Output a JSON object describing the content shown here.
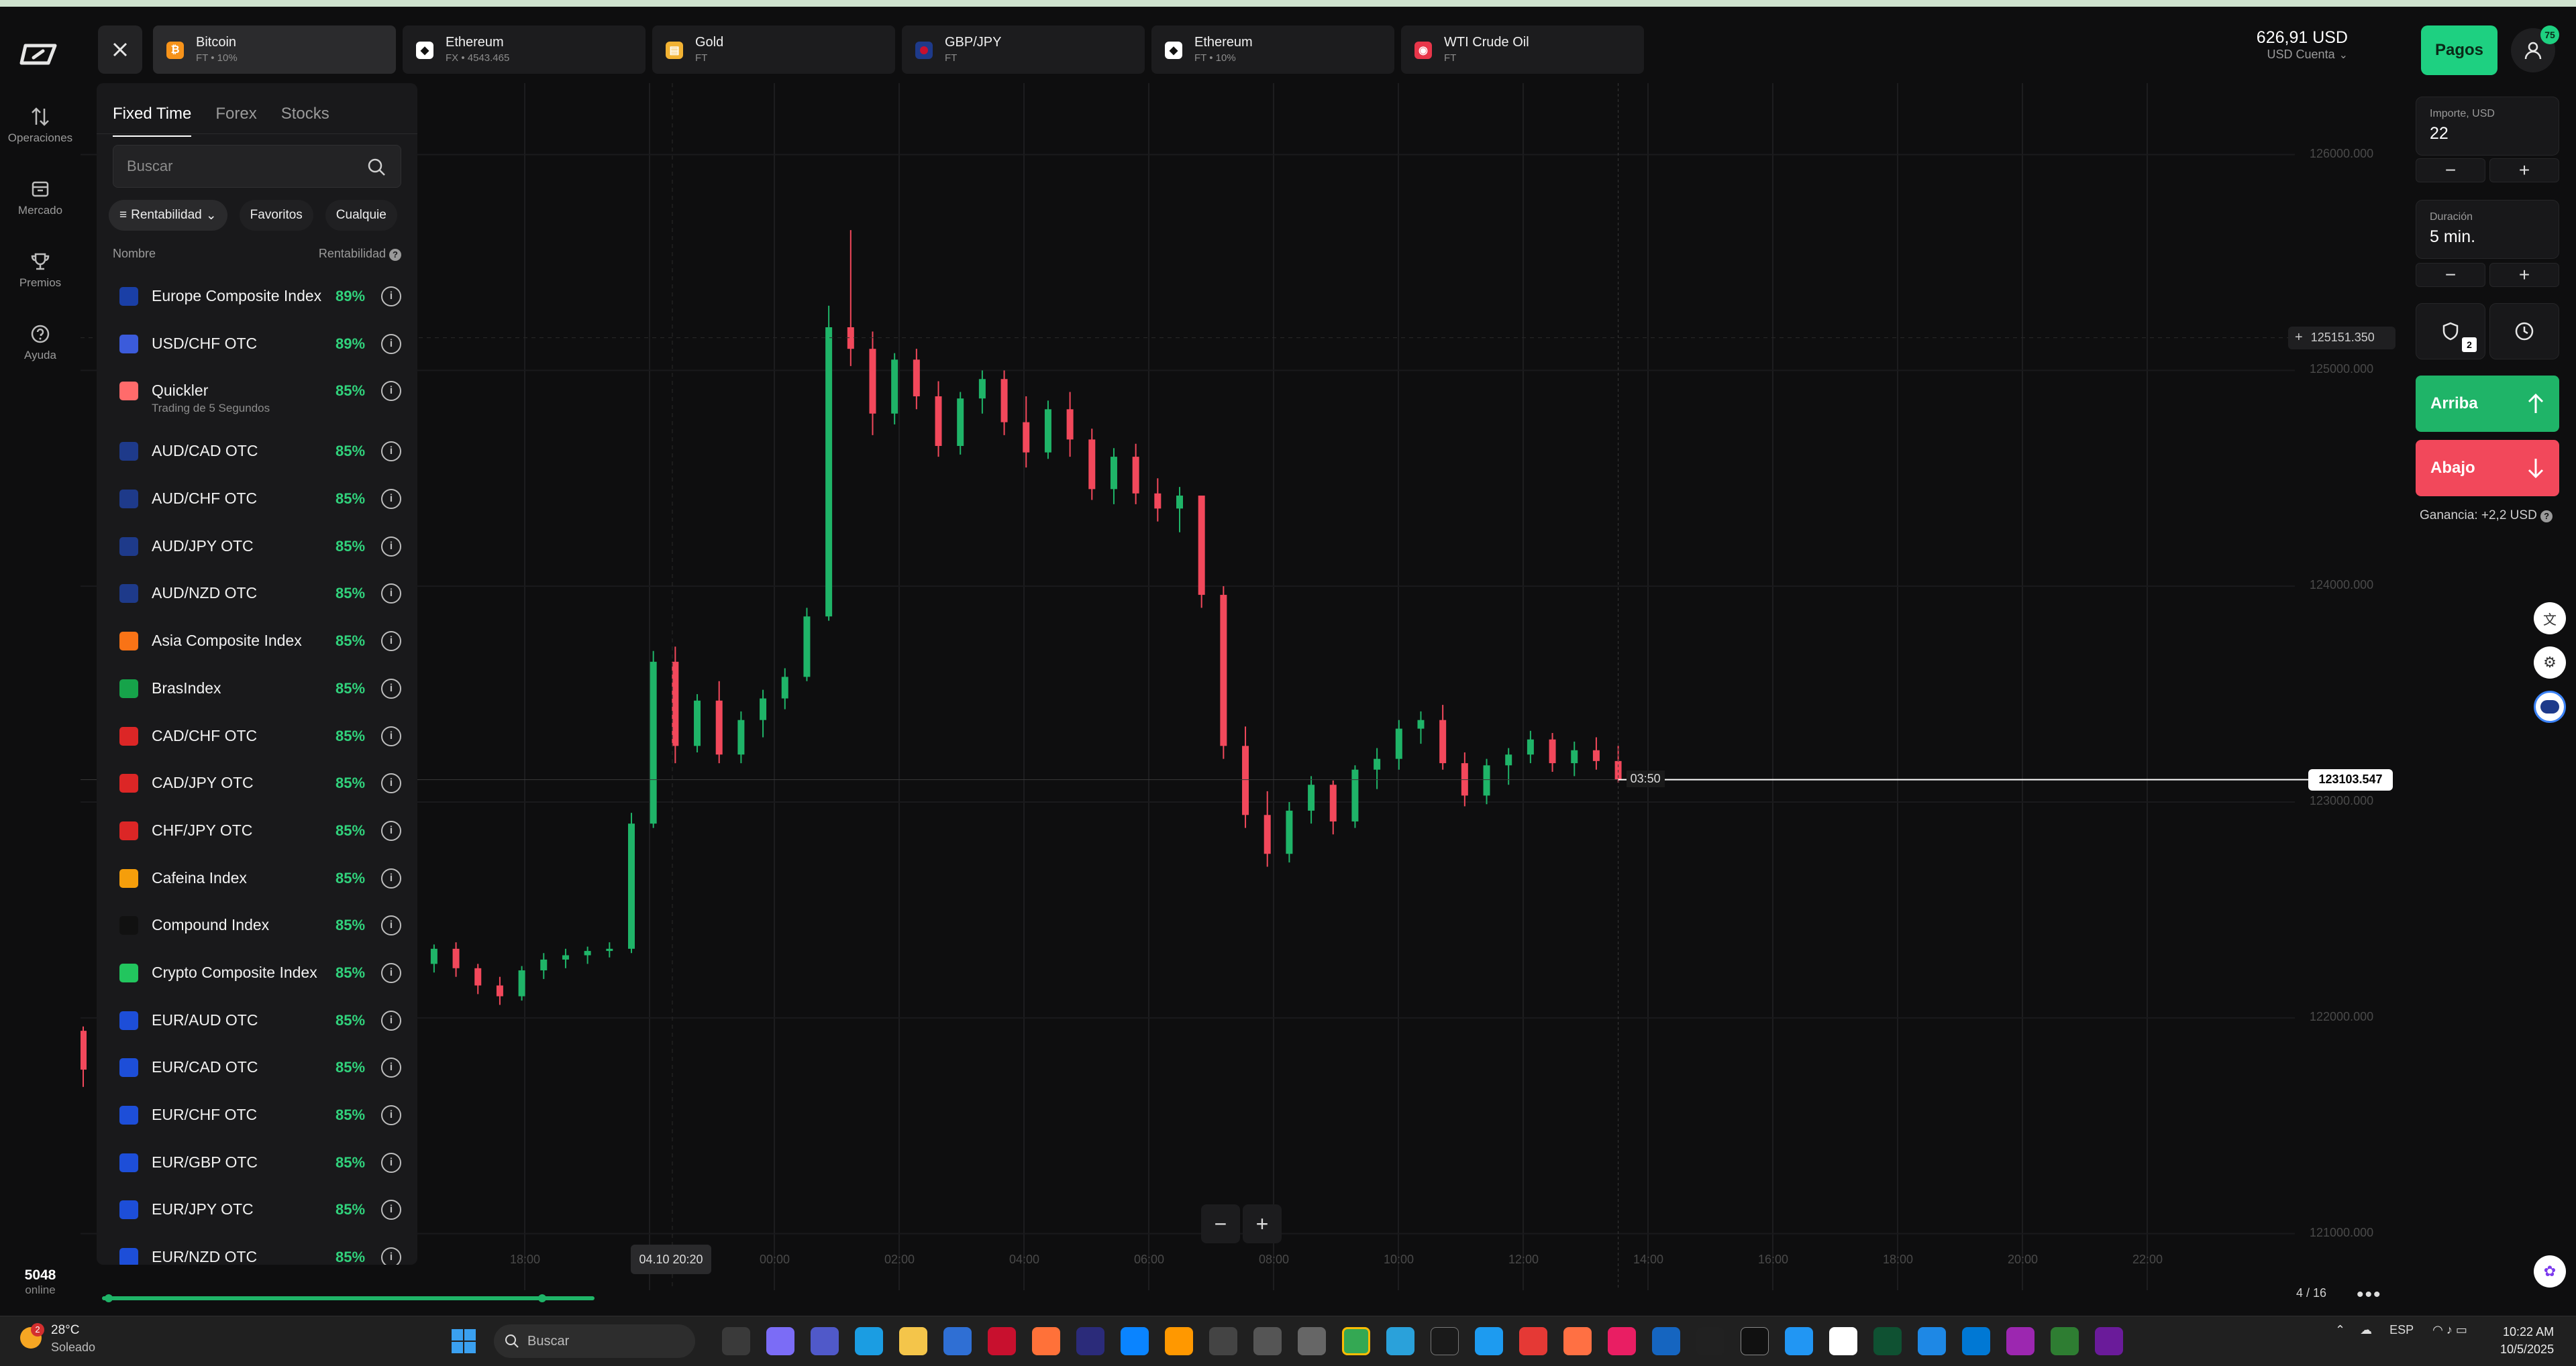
{
  "nav": {
    "items": [
      {
        "label": "Operaciones",
        "icon": "arrows-updown-icon"
      },
      {
        "label": "Mercado",
        "icon": "shop-icon"
      },
      {
        "label": "Premios",
        "icon": "trophy-icon"
      },
      {
        "label": "Ayuda",
        "icon": "help-icon"
      }
    ],
    "online_count": "5048",
    "online_label": "online"
  },
  "tabs": [
    {
      "name": "Bitcoin",
      "sub": "FT • 10%",
      "color": "#f7931a",
      "glyph": "₿"
    },
    {
      "name": "Ethereum",
      "sub": "FX • 4543.465",
      "color": "#ffffff",
      "glyph": "◆"
    },
    {
      "name": "Gold",
      "sub": "FT",
      "color": "#f2b233",
      "glyph": "▤"
    },
    {
      "name": "GBP/JPY",
      "sub": "FT",
      "color": "#c8102e",
      "glyph": "●"
    },
    {
      "name": "Ethereum",
      "sub": "FT • 10%",
      "color": "#ffffff",
      "glyph": "◆"
    },
    {
      "name": "WTI Crude Oil",
      "sub": "FT",
      "color": "#e8364a",
      "glyph": "◉"
    }
  ],
  "account": {
    "balance": "626,91 USD",
    "account_label": "USD Cuenta",
    "pay_button": "Pagos",
    "notifications": "75"
  },
  "panel": {
    "tabs": [
      "Fixed Time",
      "Forex",
      "Stocks"
    ],
    "search_placeholder": "Buscar",
    "chips": [
      "Rentabilidad",
      "Favoritos",
      "Cualquie"
    ],
    "col_name": "Nombre",
    "col_profit": "Rentabilidad",
    "assets": [
      {
        "name": "Europe Composite Index",
        "pct": "89%",
        "color": "#1a3fa6"
      },
      {
        "name": "USD/CHF OTC",
        "pct": "89%",
        "color": "#3b5bdb"
      },
      {
        "name": "Quickler",
        "sub": "Trading de 5 Segundos",
        "pct": "85%",
        "color": "#ff6b6b"
      },
      {
        "name": "AUD/CAD OTC",
        "pct": "85%",
        "color": "#1e3a8a"
      },
      {
        "name": "AUD/CHF OTC",
        "pct": "85%",
        "color": "#1e3a8a"
      },
      {
        "name": "AUD/JPY OTC",
        "pct": "85%",
        "color": "#1e3a8a"
      },
      {
        "name": "AUD/NZD OTC",
        "pct": "85%",
        "color": "#1e3a8a"
      },
      {
        "name": "Asia Composite Index",
        "pct": "85%",
        "color": "#f97316"
      },
      {
        "name": "BrasIndex",
        "pct": "85%",
        "color": "#16a34a"
      },
      {
        "name": "CAD/CHF OTC",
        "pct": "85%",
        "color": "#dc2626"
      },
      {
        "name": "CAD/JPY OTC",
        "pct": "85%",
        "color": "#dc2626"
      },
      {
        "name": "CHF/JPY OTC",
        "pct": "85%",
        "color": "#dc2626"
      },
      {
        "name": "Cafeina Index",
        "pct": "85%",
        "color": "#f59e0b"
      },
      {
        "name": "Compound Index",
        "pct": "85%",
        "color": "#111111"
      },
      {
        "name": "Crypto Composite Index",
        "pct": "85%",
        "color": "#22c55e"
      },
      {
        "name": "EUR/AUD OTC",
        "pct": "85%",
        "color": "#1d4ed8"
      },
      {
        "name": "EUR/CAD OTC",
        "pct": "85%",
        "color": "#1d4ed8"
      },
      {
        "name": "EUR/CHF OTC",
        "pct": "85%",
        "color": "#1d4ed8"
      },
      {
        "name": "EUR/GBP OTC",
        "pct": "85%",
        "color": "#1d4ed8"
      },
      {
        "name": "EUR/JPY OTC",
        "pct": "85%",
        "color": "#1d4ed8"
      },
      {
        "name": "EUR/NZD OTC",
        "pct": "85%",
        "color": "#1d4ed8"
      }
    ]
  },
  "chart": {
    "price_labels": [
      "126000.000",
      "125000.000",
      "124000.000",
      "123000.000",
      "122000.000",
      "121000.000"
    ],
    "time_labels": [
      "18:00",
      "22:00",
      "00:00",
      "02:00",
      "04:00",
      "06:00",
      "08:00",
      "10:00",
      "12:00",
      "14:00",
      "16:00",
      "18:00",
      "20:00",
      "22:00"
    ],
    "current_price": "123103.547",
    "crosshair_price": "125151.350",
    "countdown": "03:50",
    "crosshair_date": "04.10 20:20",
    "page_info": "4 / 16",
    "up_color": "#1fb468",
    "down_color": "#f2485b"
  },
  "chart_data": {
    "type": "candlestick",
    "x_label": "",
    "y_label": "",
    "ylim": [
      120800,
      126300
    ],
    "title": "",
    "start_time": "04.10 18:00",
    "interval_minutes": 5,
    "candles": [
      [
        121940,
        121960,
        121680,
        121760
      ],
      [
        121760,
        121870,
        121650,
        121840
      ],
      [
        121840,
        121990,
        121800,
        121950
      ],
      [
        121950,
        122080,
        121900,
        122050
      ],
      [
        122050,
        122180,
        122000,
        122140
      ],
      [
        122140,
        122170,
        122030,
        122060
      ],
      [
        122060,
        122210,
        122040,
        122190
      ],
      [
        122190,
        122230,
        122090,
        122110
      ],
      [
        122110,
        122150,
        122020,
        122050
      ],
      [
        122050,
        122220,
        122030,
        122200
      ],
      [
        122200,
        122260,
        122120,
        122150
      ],
      [
        122150,
        122210,
        122080,
        122170
      ],
      [
        122170,
        122300,
        122150,
        122280
      ],
      [
        122280,
        122310,
        122180,
        122210
      ],
      [
        122210,
        122260,
        122110,
        122140
      ],
      [
        122140,
        122280,
        122120,
        122250
      ],
      [
        122250,
        122340,
        122210,
        122320
      ],
      [
        122320,
        122350,
        122190,
        122230
      ],
      [
        122230,
        122250,
        122110,
        122150
      ],
      [
        122150,
        122190,
        122060,
        122100
      ],
      [
        122100,
        122240,
        122080,
        122220
      ],
      [
        122220,
        122300,
        122180,
        122270
      ],
      [
        122270,
        122320,
        122230,
        122290
      ],
      [
        122290,
        122330,
        122250,
        122310
      ],
      [
        122310,
        122350,
        122280,
        122320
      ],
      [
        122320,
        122950,
        122300,
        122900
      ],
      [
        122900,
        123700,
        122880,
        123650
      ],
      [
        123650,
        123720,
        123180,
        123260
      ],
      [
        123260,
        123500,
        123230,
        123470
      ],
      [
        123470,
        123560,
        123180,
        123220
      ],
      [
        123220,
        123420,
        123180,
        123380
      ],
      [
        123380,
        123520,
        123300,
        123480
      ],
      [
        123480,
        123620,
        123430,
        123580
      ],
      [
        123580,
        123900,
        123560,
        123860
      ],
      [
        123860,
        125300,
        123840,
        125200
      ],
      [
        125200,
        125650,
        125020,
        125100
      ],
      [
        125100,
        125180,
        124700,
        124800
      ],
      [
        124800,
        125080,
        124750,
        125050
      ],
      [
        125050,
        125100,
        124820,
        124880
      ],
      [
        124880,
        124950,
        124600,
        124650
      ],
      [
        124650,
        124900,
        124610,
        124870
      ],
      [
        124870,
        125000,
        124800,
        124960
      ],
      [
        124960,
        125000,
        124700,
        124760
      ],
      [
        124760,
        124880,
        124550,
        124620
      ],
      [
        124620,
        124860,
        124590,
        124820
      ],
      [
        124820,
        124900,
        124600,
        124680
      ],
      [
        124680,
        124730,
        124400,
        124450
      ],
      [
        124450,
        124640,
        124380,
        124600
      ],
      [
        124600,
        124660,
        124380,
        124430
      ],
      [
        124430,
        124500,
        124300,
        124360
      ],
      [
        124360,
        124460,
        124250,
        124420
      ],
      [
        124420,
        124400,
        123900,
        123960
      ],
      [
        123960,
        124000,
        123200,
        123260
      ],
      [
        123260,
        123350,
        122880,
        122940
      ],
      [
        122940,
        123050,
        122700,
        122760
      ],
      [
        122760,
        123000,
        122720,
        122960
      ],
      [
        122960,
        123120,
        122900,
        123080
      ],
      [
        123080,
        123100,
        122850,
        122910
      ],
      [
        122910,
        123170,
        122880,
        123150
      ],
      [
        123150,
        123250,
        123060,
        123200
      ],
      [
        123200,
        123380,
        123150,
        123340
      ],
      [
        123340,
        123420,
        123270,
        123380
      ],
      [
        123380,
        123450,
        123150,
        123180
      ],
      [
        123180,
        123230,
        122980,
        123030
      ],
      [
        123030,
        123200,
        122990,
        123170
      ],
      [
        123170,
        123250,
        123080,
        123220
      ],
      [
        123220,
        123330,
        123180,
        123290
      ],
      [
        123290,
        123320,
        123140,
        123180
      ],
      [
        123180,
        123280,
        123120,
        123240
      ],
      [
        123240,
        123300,
        123150,
        123190
      ],
      [
        123190,
        123260,
        123090,
        123103
      ]
    ]
  },
  "trade": {
    "amount_label": "Importe, USD",
    "amount_value": "22",
    "duration_label": "Duración",
    "duration_value": "5 min.",
    "minus": "−",
    "plus": "+",
    "protect_badge": "2",
    "up_label": "Arriba",
    "down_label": "Abajo",
    "profit_text": "Ganancia: +2,2 USD"
  },
  "taskbar": {
    "temp": "28°C",
    "weather": "Soleado",
    "weather_badge": "2",
    "search": "Buscar",
    "lang": "ESP",
    "time": "10:22 AM",
    "date": "10/5/2025"
  }
}
